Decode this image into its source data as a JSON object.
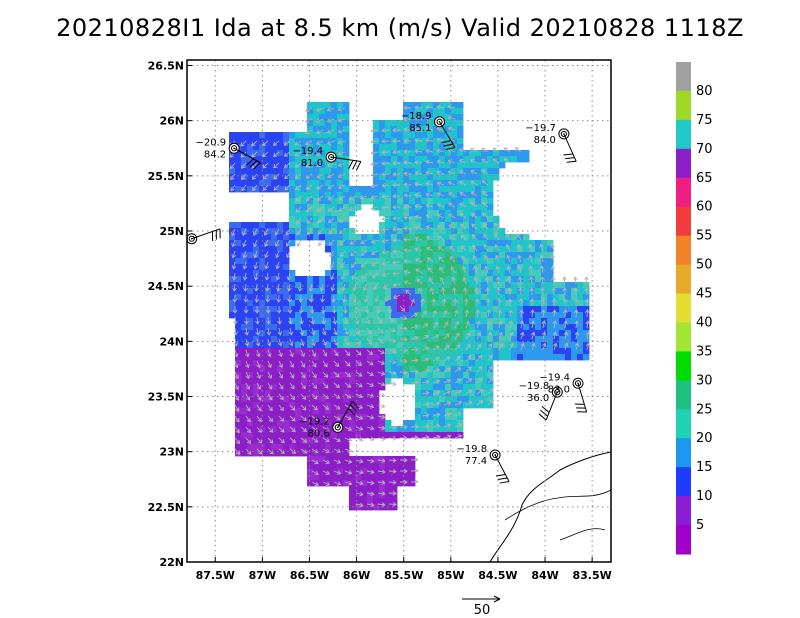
{
  "title": "20210828I1 Ida at 8.5 km (m/s) Valid 20210828 1118Z",
  "map": {
    "lon_range": [
      -87.8,
      -83.3
    ],
    "lat_range": [
      22.0,
      26.55
    ],
    "center": {
      "lon": -85.5,
      "lat": 24.35
    },
    "lat_ticks": [
      {
        "value": 22.0,
        "label": "22N"
      },
      {
        "value": 22.5,
        "label": "22.5N"
      },
      {
        "value": 23.0,
        "label": "23N"
      },
      {
        "value": 23.5,
        "label": "23.5N"
      },
      {
        "value": 24.0,
        "label": "24N"
      },
      {
        "value": 24.5,
        "label": "24.5N"
      },
      {
        "value": 25.0,
        "label": "25N"
      },
      {
        "value": 25.5,
        "label": "25.5N"
      },
      {
        "value": 26.0,
        "label": "26N"
      },
      {
        "value": 26.5,
        "label": "26.5N"
      }
    ],
    "lon_ticks": [
      {
        "value": -87.5,
        "label": "87.5W"
      },
      {
        "value": -87.0,
        "label": "87W"
      },
      {
        "value": -86.5,
        "label": "86.5W"
      },
      {
        "value": -86.0,
        "label": "86W"
      },
      {
        "value": -85.5,
        "label": "85.5W"
      },
      {
        "value": -85.0,
        "label": "85W"
      },
      {
        "value": -84.5,
        "label": "84.5W"
      },
      {
        "value": -84.0,
        "label": "84W"
      },
      {
        "value": -83.5,
        "label": "83.5W"
      }
    ],
    "grid": "dotted"
  },
  "colorbar": {
    "levels": [
      {
        "label": "80",
        "color": "#a0a0a0"
      },
      {
        "label": "75",
        "color": "#a0d828"
      },
      {
        "label": "70",
        "color": "#20c8c8"
      },
      {
        "label": "65",
        "color": "#8c1ec8"
      },
      {
        "label": "60",
        "color": "#ee1e82"
      },
      {
        "label": "55",
        "color": "#f03c3c"
      },
      {
        "label": "50",
        "color": "#f08228"
      },
      {
        "label": "45",
        "color": "#e6aa2d"
      },
      {
        "label": "40",
        "color": "#e6dc32"
      },
      {
        "label": "35",
        "color": "#a0e632"
      },
      {
        "label": "30",
        "color": "#00dc00"
      },
      {
        "label": "25",
        "color": "#20c080"
      },
      {
        "label": "20",
        "color": "#20d2b4"
      },
      {
        "label": "15",
        "color": "#1e96f0"
      },
      {
        "label": "10",
        "color": "#1e3cff"
      },
      {
        "label": "5",
        "color": "#8c1ed2"
      },
      {
        "label": "",
        "color": "#a000c8"
      }
    ]
  },
  "stations": [
    {
      "lon": -87.3,
      "lat": 25.75,
      "temp": "−20.9",
      "val": "84.2"
    },
    {
      "lon": -86.27,
      "lat": 25.67,
      "temp": "−19.4",
      "val": "81.0"
    },
    {
      "lon": -85.12,
      "lat": 25.99,
      "temp": "−18.9",
      "val": "85.1"
    },
    {
      "lon": -83.8,
      "lat": 25.88,
      "temp": "−19.7",
      "val": "84.0"
    },
    {
      "lon": -87.75,
      "lat": 24.93,
      "temp": "",
      "val": ""
    },
    {
      "lon": -86.2,
      "lat": 23.22,
      "temp": "−19.2",
      "val": "80.6"
    },
    {
      "lon": -84.53,
      "lat": 22.97,
      "temp": "−19.8",
      "val": "77.4"
    },
    {
      "lon": -83.87,
      "lat": 23.54,
      "temp": "−19.8",
      "val": "36.0"
    },
    {
      "lon": -83.65,
      "lat": 23.62,
      "temp": "−19.4",
      "val": "83.0"
    }
  ],
  "reference_vector": {
    "label": "50",
    "speed": 50
  }
}
